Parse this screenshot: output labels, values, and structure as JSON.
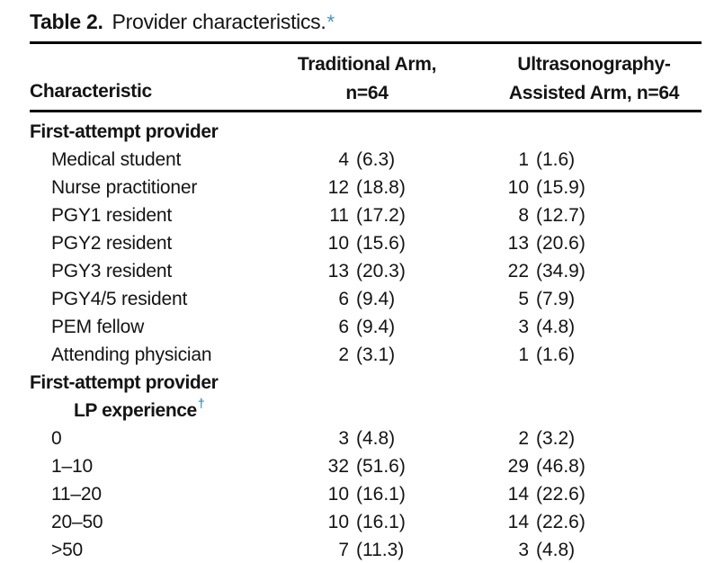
{
  "title": {
    "label": "Table 2.",
    "text": "Provider characteristics.",
    "footnote_marker": "*",
    "marker_color": "#3e93c6"
  },
  "table": {
    "columns": [
      {
        "header_lines": [
          "Characteristic",
          ""
        ],
        "align": "left"
      },
      {
        "header_lines": [
          "Traditional Arm,",
          "n=64"
        ],
        "align": "center"
      },
      {
        "header_lines": [
          "Ultrasonography-",
          "Assisted Arm, n=64"
        ],
        "align": "center"
      }
    ],
    "rows": [
      {
        "label": "First-attempt provider",
        "style": "section"
      },
      {
        "label": "Medical student",
        "style": "item",
        "values": [
          {
            "n": "4",
            "pct": "(6.3)"
          },
          {
            "n": "1",
            "pct": "(1.6)"
          }
        ]
      },
      {
        "label": "Nurse practitioner",
        "style": "item",
        "values": [
          {
            "n": "12",
            "pct": "(18.8)"
          },
          {
            "n": "10",
            "pct": "(15.9)"
          }
        ]
      },
      {
        "label": "PGY1 resident",
        "style": "item",
        "values": [
          {
            "n": "11",
            "pct": "(17.2)"
          },
          {
            "n": "8",
            "pct": "(12.7)"
          }
        ]
      },
      {
        "label": "PGY2 resident",
        "style": "item",
        "values": [
          {
            "n": "10",
            "pct": "(15.6)"
          },
          {
            "n": "13",
            "pct": "(20.6)"
          }
        ]
      },
      {
        "label": "PGY3 resident",
        "style": "item",
        "values": [
          {
            "n": "13",
            "pct": "(20.3)"
          },
          {
            "n": "22",
            "pct": "(34.9)"
          }
        ]
      },
      {
        "label": "PGY4/5 resident",
        "style": "item",
        "values": [
          {
            "n": "6",
            "pct": "(9.4)"
          },
          {
            "n": "5",
            "pct": "(7.9)"
          }
        ]
      },
      {
        "label": "PEM fellow",
        "style": "item",
        "values": [
          {
            "n": "6",
            "pct": "(9.4)"
          },
          {
            "n": "3",
            "pct": "(4.8)"
          }
        ]
      },
      {
        "label": "Attending physician",
        "style": "item",
        "values": [
          {
            "n": "2",
            "pct": "(3.1)"
          },
          {
            "n": "1",
            "pct": "(1.6)"
          }
        ]
      },
      {
        "label": "First-attempt provider",
        "style": "section"
      },
      {
        "label": "LP experience",
        "style": "section-cont",
        "sup": "†"
      },
      {
        "label": "0",
        "style": "item",
        "values": [
          {
            "n": "3",
            "pct": "(4.8)"
          },
          {
            "n": "2",
            "pct": "(3.2)"
          }
        ]
      },
      {
        "label": "1–10",
        "style": "item",
        "values": [
          {
            "n": "32",
            "pct": "(51.6)"
          },
          {
            "n": "29",
            "pct": "(46.8)"
          }
        ]
      },
      {
        "label": "11–20",
        "style": "item",
        "values": [
          {
            "n": "10",
            "pct": "(16.1)"
          },
          {
            "n": "14",
            "pct": "(22.6)"
          }
        ]
      },
      {
        "label": "20–50",
        "style": "item",
        "values": [
          {
            "n": "10",
            "pct": "(16.1)"
          },
          {
            "n": "14",
            "pct": "(22.6)"
          }
        ]
      },
      {
        "label": ">50",
        "style": "item",
        "values": [
          {
            "n": "7",
            "pct": "(11.3)"
          },
          {
            "n": "3",
            "pct": "(4.8)"
          }
        ]
      }
    ]
  }
}
